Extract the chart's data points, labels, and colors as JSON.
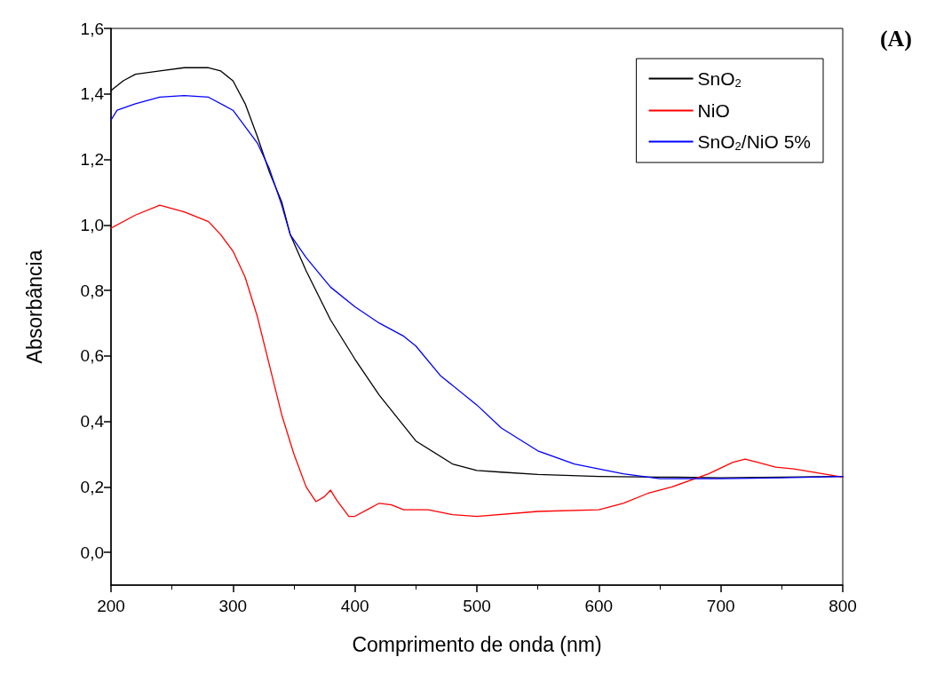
{
  "chart_data": {
    "type": "line",
    "xlabel": "Comprimento de onda (nm)",
    "ylabel": "Absorbância",
    "annotations": [
      "(A)"
    ],
    "xlim": [
      200,
      800
    ],
    "xticks": [
      200,
      300,
      400,
      500,
      600,
      700,
      800
    ],
    "ylim": [
      -0.1,
      1.6
    ],
    "yticks": [
      {
        "value": 0,
        "label": "0,0"
      },
      {
        "value": 0.2,
        "label": "0,2"
      },
      {
        "value": 0.4,
        "label": "0,4"
      },
      {
        "value": 0.6,
        "label": "0,6"
      },
      {
        "value": 0.8,
        "label": "0,8"
      },
      {
        "value": 1.0,
        "label": "1,0"
      },
      {
        "value": 1.2,
        "label": "1,2"
      },
      {
        "value": 1.4,
        "label": "1,4"
      },
      {
        "value": 1.6,
        "label": "1,6"
      }
    ],
    "grid": false,
    "legend": "top right",
    "marker": "none",
    "line_style": "solid",
    "series": [
      {
        "name": "SnO$_{2}$",
        "color": "#000000",
        "x": [
          200,
          210,
          220,
          240,
          260,
          280,
          290,
          300,
          310,
          320,
          330,
          340,
          347,
          360,
          380,
          400,
          420,
          450,
          480,
          500,
          520,
          550,
          600,
          650,
          700,
          750,
          800
        ],
        "values": [
          1.41,
          1.44,
          1.46,
          1.47,
          1.48,
          1.48,
          1.47,
          1.44,
          1.37,
          1.27,
          1.16,
          1.07,
          0.97,
          0.86,
          0.71,
          0.59,
          0.48,
          0.34,
          0.27,
          0.25,
          0.245,
          0.238,
          0.232,
          0.23,
          0.228,
          0.23,
          0.232
        ]
      },
      {
        "name": "NiO",
        "color": "#ff0000",
        "x": [
          200,
          220,
          240,
          260,
          280,
          290,
          300,
          310,
          320,
          330,
          340,
          350,
          360,
          368,
          375,
          380,
          385,
          395,
          400,
          410,
          420,
          430,
          440,
          460,
          480,
          500,
          550,
          600,
          620,
          640,
          660,
          690,
          710,
          720,
          730,
          745,
          760,
          800
        ],
        "values": [
          0.99,
          1.03,
          1.06,
          1.04,
          1.01,
          0.97,
          0.92,
          0.84,
          0.72,
          0.57,
          0.42,
          0.3,
          0.2,
          0.155,
          0.17,
          0.19,
          0.16,
          0.11,
          0.11,
          0.13,
          0.15,
          0.145,
          0.13,
          0.13,
          0.115,
          0.11,
          0.125,
          0.13,
          0.15,
          0.18,
          0.2,
          0.24,
          0.275,
          0.285,
          0.275,
          0.26,
          0.255,
          0.23
        ]
      },
      {
        "name": "SnO$_{2}$/NiO 5%",
        "color": "#0000ff",
        "x": [
          200,
          205,
          220,
          240,
          260,
          280,
          300,
          320,
          330,
          340,
          347,
          360,
          380,
          400,
          420,
          440,
          450,
          470,
          500,
          520,
          550,
          580,
          620,
          650,
          700,
          750,
          800
        ],
        "values": [
          1.32,
          1.35,
          1.37,
          1.39,
          1.395,
          1.39,
          1.35,
          1.25,
          1.17,
          1.06,
          0.97,
          0.9,
          0.81,
          0.75,
          0.7,
          0.66,
          0.63,
          0.54,
          0.45,
          0.38,
          0.31,
          0.27,
          0.24,
          0.225,
          0.225,
          0.228,
          0.232
        ]
      }
    ]
  }
}
